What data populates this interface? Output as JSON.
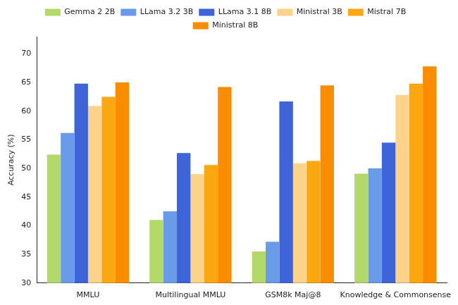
{
  "chart_data": {
    "type": "bar",
    "y_label": "Accuracy (%)",
    "categories": [
      "MMLU",
      "Multilingual MMLU",
      "GSM8k Maj@8",
      "Knowledge & Commonsense"
    ],
    "series": [
      {
        "name": "Gemma 2 2B",
        "color": "#b3d96a",
        "values": [
          52.4,
          41.0,
          35.5,
          49.1
        ]
      },
      {
        "name": "LLama 3.2 3B",
        "color": "#6a9be8",
        "values": [
          56.2,
          42.5,
          37.2,
          50.0
        ]
      },
      {
        "name": "LLama 3.1 8B",
        "color": "#3f63d9",
        "values": [
          64.8,
          52.7,
          61.7,
          54.5
        ]
      },
      {
        "name": "Ministral 3B",
        "color": "#fdd28a",
        "values": [
          60.9,
          49.0,
          50.9,
          62.8
        ]
      },
      {
        "name": "Mistral 7B",
        "color": "#fba70f",
        "values": [
          62.5,
          50.6,
          51.3,
          64.8
        ]
      },
      {
        "name": "Ministral 8B",
        "color": "#fb8c00",
        "values": [
          65.0,
          64.2,
          64.5,
          67.8
        ]
      }
    ],
    "ylim": [
      30,
      73
    ],
    "yticks": [
      30,
      35,
      40,
      45,
      50,
      55,
      60,
      65,
      70
    ],
    "grid": false,
    "legend": "upper center"
  }
}
